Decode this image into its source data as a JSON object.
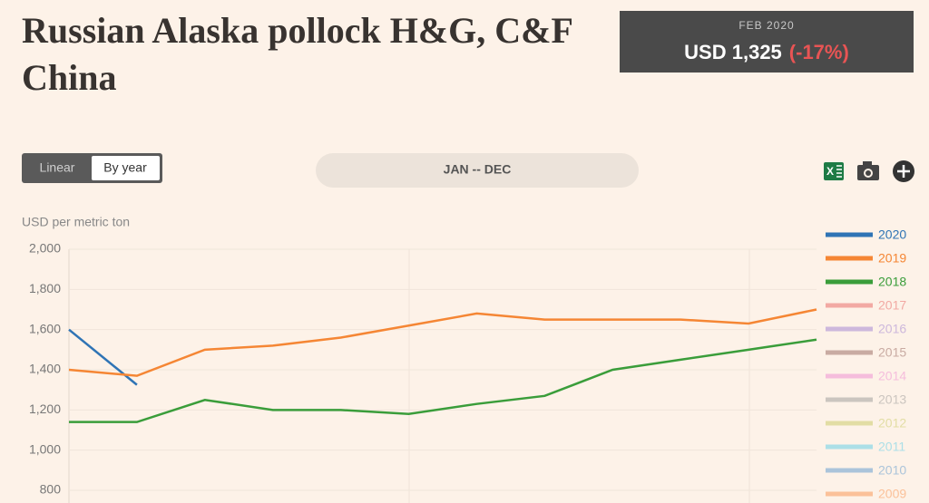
{
  "header": {
    "title_lines": [
      "Russian Alaska pollock H&G, C&F",
      "China"
    ],
    "badge": {
      "period": "FEB 2020",
      "price": "USD 1,325",
      "change": "(-17%)"
    }
  },
  "controls": {
    "toggle": [
      "Linear",
      "By year"
    ],
    "range": "JAN -- DEC"
  },
  "chart_data": {
    "type": "line",
    "ylabel": "USD per metric ton",
    "categories": [
      null,
      null,
      null,
      null,
      null,
      null,
      null,
      null,
      null,
      null,
      null,
      null
    ],
    "ylim": [
      800,
      2000
    ],
    "yticks": [
      {
        "value": 800,
        "label": "800"
      },
      {
        "value": 1000,
        "label": "1,000"
      },
      {
        "value": 1200,
        "label": "1,200"
      },
      {
        "value": 1400,
        "label": "1,400"
      },
      {
        "value": 1600,
        "label": "1,600"
      },
      {
        "value": 1800,
        "label": "1,800"
      },
      {
        "value": 2000,
        "label": "2,000"
      }
    ],
    "grid": true,
    "series": [
      {
        "name": "2020",
        "color": "#2f74b5",
        "values": [
          1600,
          1325,
          null,
          null,
          null,
          null,
          null,
          null,
          null,
          null,
          null,
          null
        ]
      },
      {
        "name": "2019",
        "color": "#f58634",
        "values": [
          1400,
          1370,
          1500,
          1520,
          1560,
          1620,
          1680,
          1650,
          1650,
          1650,
          1630,
          1700
        ]
      },
      {
        "name": "2018",
        "color": "#3a9d3a",
        "values": [
          1140,
          1140,
          1250,
          1200,
          1200,
          1180,
          1230,
          1270,
          1400,
          1450,
          1500,
          1550
        ]
      }
    ],
    "hidden_series": [
      {
        "name": "2017",
        "color": "#f2a9a3"
      },
      {
        "name": "2016",
        "color": "#cdb8dc"
      },
      {
        "name": "2015",
        "color": "#c9aba2"
      },
      {
        "name": "2014",
        "color": "#f5bddc"
      },
      {
        "name": "2013",
        "color": "#cbc5bf"
      },
      {
        "name": "2012",
        "color": "#e2dda4"
      },
      {
        "name": "2011",
        "color": "#acdfe7"
      },
      {
        "name": "2010",
        "color": "#abc4da"
      },
      {
        "name": "2009",
        "color": "#fbc199"
      }
    ]
  }
}
